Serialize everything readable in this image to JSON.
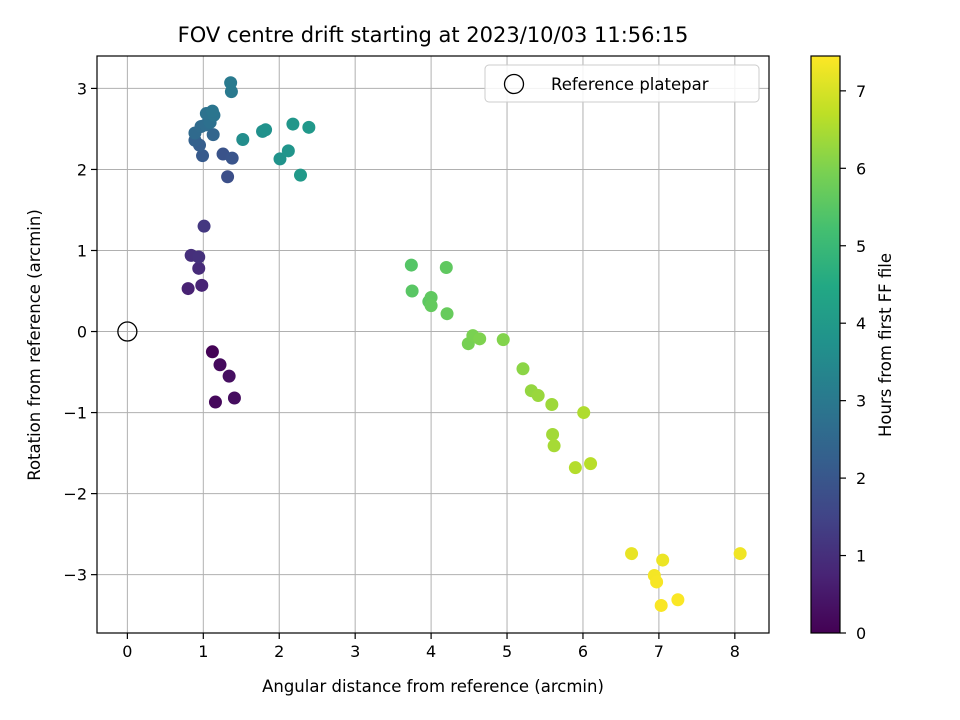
{
  "chart_data": {
    "type": "scatter",
    "title": "FOV centre drift starting at 2023/10/03 11:56:15",
    "xlabel": "Angular distance from reference (arcmin)",
    "ylabel": "Rotation from reference (arcmin)",
    "xlim": [
      -0.4,
      8.45
    ],
    "ylim": [
      -3.72,
      3.4
    ],
    "xticks": [
      0,
      1,
      2,
      3,
      4,
      5,
      6,
      7,
      8
    ],
    "yticks": [
      -3,
      -2,
      -1,
      0,
      1,
      2,
      3
    ],
    "xtick_labels": [
      "0",
      "1",
      "2",
      "3",
      "4",
      "5",
      "6",
      "7",
      "8"
    ],
    "ytick_labels": [
      "−3",
      "−2",
      "−1",
      "0",
      "1",
      "2",
      "3"
    ],
    "grid": true,
    "legend": {
      "position": "top-right",
      "label": "Reference platepar"
    },
    "reference_point": {
      "x": 0,
      "y": 0
    },
    "colorbar": {
      "label": "Hours from first FF file",
      "colormap": "viridis",
      "range": [
        0,
        7.45
      ],
      "ticks": [
        0,
        1,
        2,
        3,
        4,
        5,
        6,
        7
      ],
      "tick_labels": [
        "0",
        "1",
        "2",
        "3",
        "4",
        "5",
        "6",
        "7"
      ]
    },
    "points": [
      {
        "x": 1.12,
        "y": -0.25,
        "h": 0.05
      },
      {
        "x": 1.16,
        "y": -0.87,
        "h": 0.15
      },
      {
        "x": 1.22,
        "y": -0.41,
        "h": 0.2
      },
      {
        "x": 1.34,
        "y": -0.55,
        "h": 0.3
      },
      {
        "x": 1.41,
        "y": -0.82,
        "h": 0.25
      },
      {
        "x": 0.8,
        "y": 0.53,
        "h": 0.7
      },
      {
        "x": 0.98,
        "y": 0.57,
        "h": 0.75
      },
      {
        "x": 0.94,
        "y": 0.78,
        "h": 0.9
      },
      {
        "x": 0.84,
        "y": 0.94,
        "h": 1.0
      },
      {
        "x": 0.94,
        "y": 0.92,
        "h": 1.05
      },
      {
        "x": 1.01,
        "y": 1.3,
        "h": 1.2
      },
      {
        "x": 1.32,
        "y": 1.91,
        "h": 1.8
      },
      {
        "x": 1.26,
        "y": 2.19,
        "h": 1.9
      },
      {
        "x": 1.38,
        "y": 2.14,
        "h": 1.95
      },
      {
        "x": 0.99,
        "y": 2.17,
        "h": 2.1
      },
      {
        "x": 0.95,
        "y": 2.3,
        "h": 2.2
      },
      {
        "x": 0.89,
        "y": 2.36,
        "h": 2.3
      },
      {
        "x": 1.13,
        "y": 2.43,
        "h": 2.4
      },
      {
        "x": 0.89,
        "y": 2.45,
        "h": 2.55
      },
      {
        "x": 0.97,
        "y": 2.53,
        "h": 2.6
      },
      {
        "x": 1.03,
        "y": 2.55,
        "h": 2.65
      },
      {
        "x": 1.09,
        "y": 2.58,
        "h": 2.75
      },
      {
        "x": 1.04,
        "y": 2.69,
        "h": 2.8
      },
      {
        "x": 1.14,
        "y": 2.67,
        "h": 2.85
      },
      {
        "x": 1.12,
        "y": 2.72,
        "h": 2.9
      },
      {
        "x": 1.37,
        "y": 2.96,
        "h": 3.0
      },
      {
        "x": 1.36,
        "y": 3.07,
        "h": 3.05
      },
      {
        "x": 1.52,
        "y": 2.37,
        "h": 3.6
      },
      {
        "x": 1.78,
        "y": 2.47,
        "h": 3.7
      },
      {
        "x": 1.82,
        "y": 2.49,
        "h": 3.75
      },
      {
        "x": 2.01,
        "y": 2.13,
        "h": 3.8
      },
      {
        "x": 2.12,
        "y": 2.23,
        "h": 3.85
      },
      {
        "x": 2.18,
        "y": 2.56,
        "h": 3.9
      },
      {
        "x": 2.39,
        "y": 2.52,
        "h": 3.95
      },
      {
        "x": 2.28,
        "y": 1.93,
        "h": 4.0
      },
      {
        "x": 3.74,
        "y": 0.82,
        "h": 5.45
      },
      {
        "x": 3.75,
        "y": 0.5,
        "h": 5.5
      },
      {
        "x": 3.97,
        "y": 0.37,
        "h": 5.55
      },
      {
        "x": 4.0,
        "y": 0.42,
        "h": 5.6
      },
      {
        "x": 4.0,
        "y": 0.32,
        "h": 5.65
      },
      {
        "x": 4.2,
        "y": 0.79,
        "h": 5.6
      },
      {
        "x": 4.21,
        "y": 0.22,
        "h": 5.7
      },
      {
        "x": 4.49,
        "y": -0.15,
        "h": 5.9
      },
      {
        "x": 4.55,
        "y": -0.05,
        "h": 5.95
      },
      {
        "x": 4.64,
        "y": -0.09,
        "h": 6.0
      },
      {
        "x": 4.95,
        "y": -0.1,
        "h": 6.05
      },
      {
        "x": 5.21,
        "y": -0.46,
        "h": 6.15
      },
      {
        "x": 5.32,
        "y": -0.73,
        "h": 6.25
      },
      {
        "x": 5.41,
        "y": -0.79,
        "h": 6.3
      },
      {
        "x": 5.59,
        "y": -0.9,
        "h": 6.35
      },
      {
        "x": 5.6,
        "y": -1.27,
        "h": 6.4
      },
      {
        "x": 5.62,
        "y": -1.41,
        "h": 6.45
      },
      {
        "x": 6.01,
        "y": -1.0,
        "h": 6.55
      },
      {
        "x": 5.9,
        "y": -1.68,
        "h": 6.6
      },
      {
        "x": 6.1,
        "y": -1.63,
        "h": 6.65
      },
      {
        "x": 6.64,
        "y": -2.74,
        "h": 7.2
      },
      {
        "x": 7.05,
        "y": -2.82,
        "h": 7.25
      },
      {
        "x": 8.07,
        "y": -2.74,
        "h": 7.3
      },
      {
        "x": 6.94,
        "y": -3.01,
        "h": 7.35
      },
      {
        "x": 6.97,
        "y": -3.09,
        "h": 7.38
      },
      {
        "x": 7.03,
        "y": -3.38,
        "h": 7.4
      },
      {
        "x": 7.25,
        "y": -3.31,
        "h": 7.42
      }
    ]
  }
}
